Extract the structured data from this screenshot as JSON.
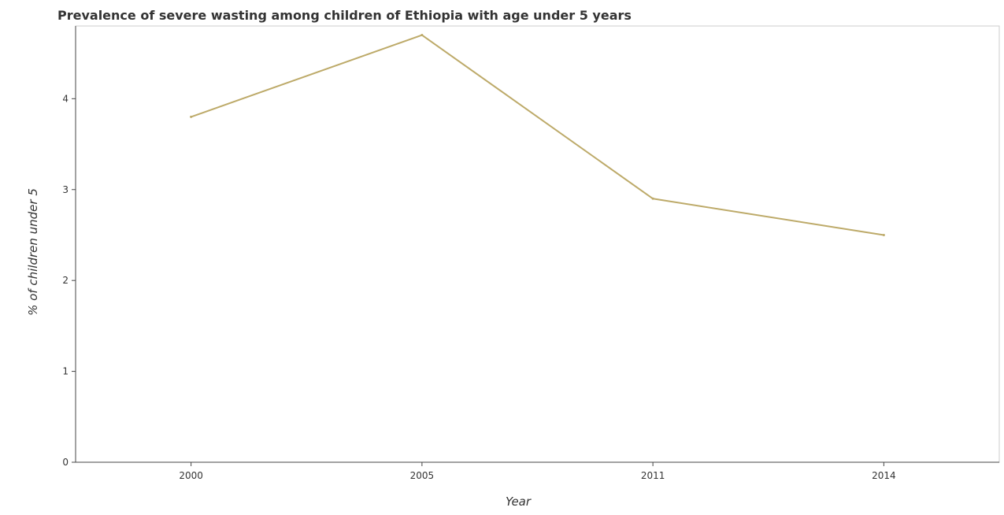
{
  "chart_data": {
    "type": "line",
    "title": "Prevalence of severe wasting among children of Ethiopia with age under 5 years",
    "xlabel": "Year",
    "ylabel": "% of children under 5",
    "categories": [
      "2000",
      "2005",
      "2011",
      "2014"
    ],
    "series": [
      {
        "values": [
          3.8,
          4.7,
          2.9,
          2.5
        ],
        "color": "#bdaa69"
      }
    ],
    "ylim": [
      0,
      4.8
    ],
    "yticks": [
      "0",
      "1",
      "2",
      "3",
      "4"
    ],
    "grid": false
  }
}
